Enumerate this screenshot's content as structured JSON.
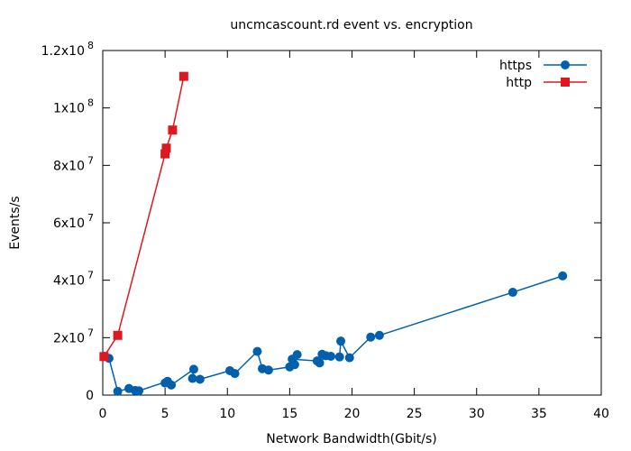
{
  "chart_data": {
    "type": "line",
    "title": "uncmcascount.rd event vs. encryption",
    "xlabel": "Network Bandwidth(Gbit/s)",
    "ylabel": "Events/s",
    "xlim": [
      0,
      40
    ],
    "ylim": [
      0,
      120000000
    ],
    "x_ticks": [
      {
        "value": 0,
        "label": "0"
      },
      {
        "value": 5,
        "label": "5"
      },
      {
        "value": 10,
        "label": "10"
      },
      {
        "value": 15,
        "label": "15"
      },
      {
        "value": 20,
        "label": "20"
      },
      {
        "value": 25,
        "label": "25"
      },
      {
        "value": 30,
        "label": "30"
      },
      {
        "value": 35,
        "label": "35"
      },
      {
        "value": 40,
        "label": "40"
      }
    ],
    "y_ticks": [
      {
        "value": 0,
        "mantissa": "0",
        "exp": ""
      },
      {
        "value": 20000000,
        "mantissa": "2x10",
        "exp": "7"
      },
      {
        "value": 40000000,
        "mantissa": "4x10",
        "exp": "7"
      },
      {
        "value": 60000000,
        "mantissa": "6x10",
        "exp": "7"
      },
      {
        "value": 80000000,
        "mantissa": "8x10",
        "exp": "7"
      },
      {
        "value": 100000000,
        "mantissa": "1x10",
        "exp": "8"
      },
      {
        "value": 120000000,
        "mantissa": "1.2x10",
        "exp": "8"
      }
    ],
    "grid": false,
    "legend_position": "top-right",
    "series": [
      {
        "name": "https",
        "color": "#0060ad",
        "marker": "circle",
        "points": [
          [
            0.1,
            13500000
          ],
          [
            0.5,
            12800000
          ],
          [
            1.2,
            1300000
          ],
          [
            2.1,
            2300000
          ],
          [
            2.6,
            1600000
          ],
          [
            2.9,
            1500000
          ],
          [
            5.2,
            4800000
          ],
          [
            5.0,
            4200000
          ],
          [
            5.5,
            3500000
          ],
          [
            7.3,
            9000000
          ],
          [
            7.2,
            5800000
          ],
          [
            7.8,
            5500000
          ],
          [
            10.2,
            8500000
          ],
          [
            10.6,
            7500000
          ],
          [
            12.4,
            15200000
          ],
          [
            12.8,
            9200000
          ],
          [
            13.3,
            8700000
          ],
          [
            15.0,
            9800000
          ],
          [
            15.4,
            10600000
          ],
          [
            15.6,
            14100000
          ],
          [
            15.2,
            12500000
          ],
          [
            17.2,
            11900000
          ],
          [
            17.6,
            14200000
          ],
          [
            17.4,
            11200000
          ],
          [
            17.9,
            13700000
          ],
          [
            18.3,
            13500000
          ],
          [
            19.0,
            13300000
          ],
          [
            19.1,
            18800000
          ],
          [
            19.8,
            13000000
          ],
          [
            21.5,
            20200000
          ],
          [
            22.2,
            20800000
          ],
          [
            32.9,
            35800000
          ],
          [
            36.9,
            41500000
          ]
        ]
      },
      {
        "name": "http",
        "color": "#dd181f",
        "marker": "square",
        "points": [
          [
            0.1,
            13400000
          ],
          [
            1.2,
            20800000
          ],
          [
            5.0,
            84000000
          ],
          [
            5.1,
            86000000
          ],
          [
            5.6,
            92300000
          ],
          [
            6.5,
            111000000
          ]
        ]
      }
    ]
  }
}
